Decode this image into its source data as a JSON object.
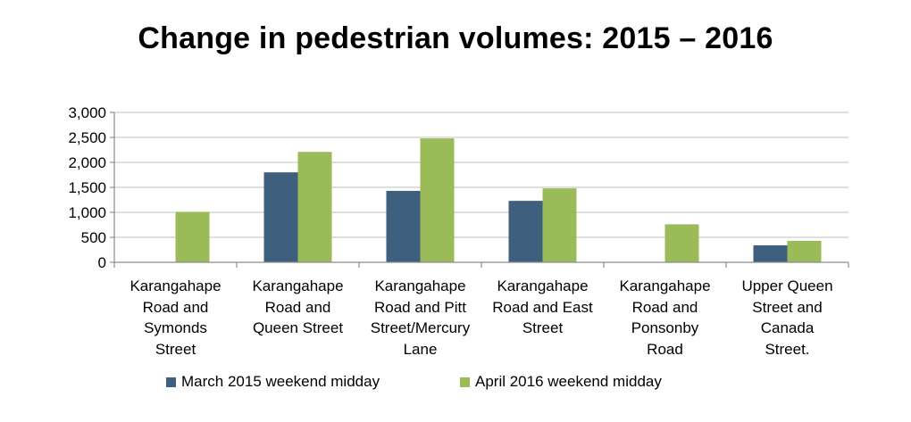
{
  "chart_data": {
    "type": "bar",
    "title": "Change in pedestrian volumes: 2015 – 2016",
    "categories": [
      "Karangahape Road and Symonds Street",
      "Karangahape Road and Queen Street",
      "Karangahape Road and Pitt Street/Mercury Lane",
      "Karangahape Road and East Street",
      "Karangahape Road and Ponsonby Road",
      "Upper Queen Street and Canada Street."
    ],
    "category_lines": [
      [
        "Karangahape",
        "Road and",
        "Symonds",
        "Street"
      ],
      [
        "Karangahape",
        "Road and",
        "Queen Street"
      ],
      [
        "Karangahape",
        "Road and Pitt",
        "Street/Mercury",
        "Lane"
      ],
      [
        "Karangahape",
        "Road and East",
        "Street"
      ],
      [
        "Karangahape",
        "Road and",
        "Ponsonby",
        "Road"
      ],
      [
        "Upper Queen",
        "Street and",
        "Canada",
        "Street."
      ]
    ],
    "series": [
      {
        "name": "March 2015 weekend midday",
        "color": "#3f5f7f",
        "values": [
          null,
          1800,
          1430,
          1230,
          null,
          340
        ]
      },
      {
        "name": "April 2016 weekend midday",
        "color": "#9bbb59",
        "values": [
          1010,
          2210,
          2480,
          1480,
          760,
          430
        ]
      }
    ],
    "ylim": [
      0,
      3000
    ],
    "yticks": [
      0,
      500,
      1000,
      1500,
      2000,
      2500,
      3000
    ],
    "ytick_labels": [
      "0",
      "500",
      "1,000",
      "1,500",
      "2,000",
      "2,500",
      "3,000"
    ],
    "xlabel": "",
    "ylabel": "",
    "grid": true,
    "legend_position": "bottom"
  }
}
